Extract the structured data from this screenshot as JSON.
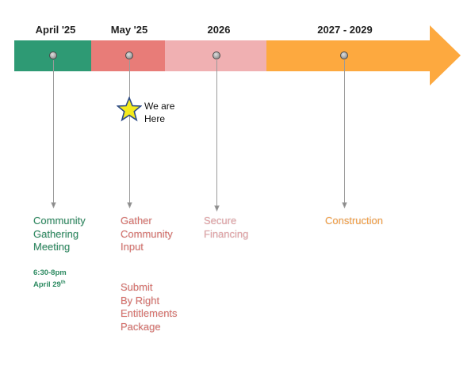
{
  "periods": [
    {
      "header": "April '25",
      "color": "#2e9a74"
    },
    {
      "header": "May '25",
      "color": "#e87c78"
    },
    {
      "header": "2026",
      "color": "#f0b0b2"
    },
    {
      "header": "2027 - 2029",
      "color": "#fda93f"
    }
  ],
  "milestones": {
    "community_gathering": {
      "lines": [
        "Community",
        "Gathering",
        "Meeting"
      ],
      "time": "6:30-8pm",
      "date_prefix": "April 29",
      "date_suffix": "th"
    },
    "gather_input": {
      "lines": [
        "Gather",
        "Community",
        "Input"
      ]
    },
    "submit_entitlements": {
      "lines": [
        "Submit",
        "By Right",
        "Entitlements",
        "Package"
      ]
    },
    "secure_financing": {
      "lines": [
        "Secure",
        "Financing"
      ]
    },
    "construction": {
      "lines": [
        "Construction"
      ]
    }
  },
  "current_marker": {
    "lines": [
      "We are",
      "Here"
    ],
    "icon": "star-icon",
    "color": "#f4ea1c"
  }
}
